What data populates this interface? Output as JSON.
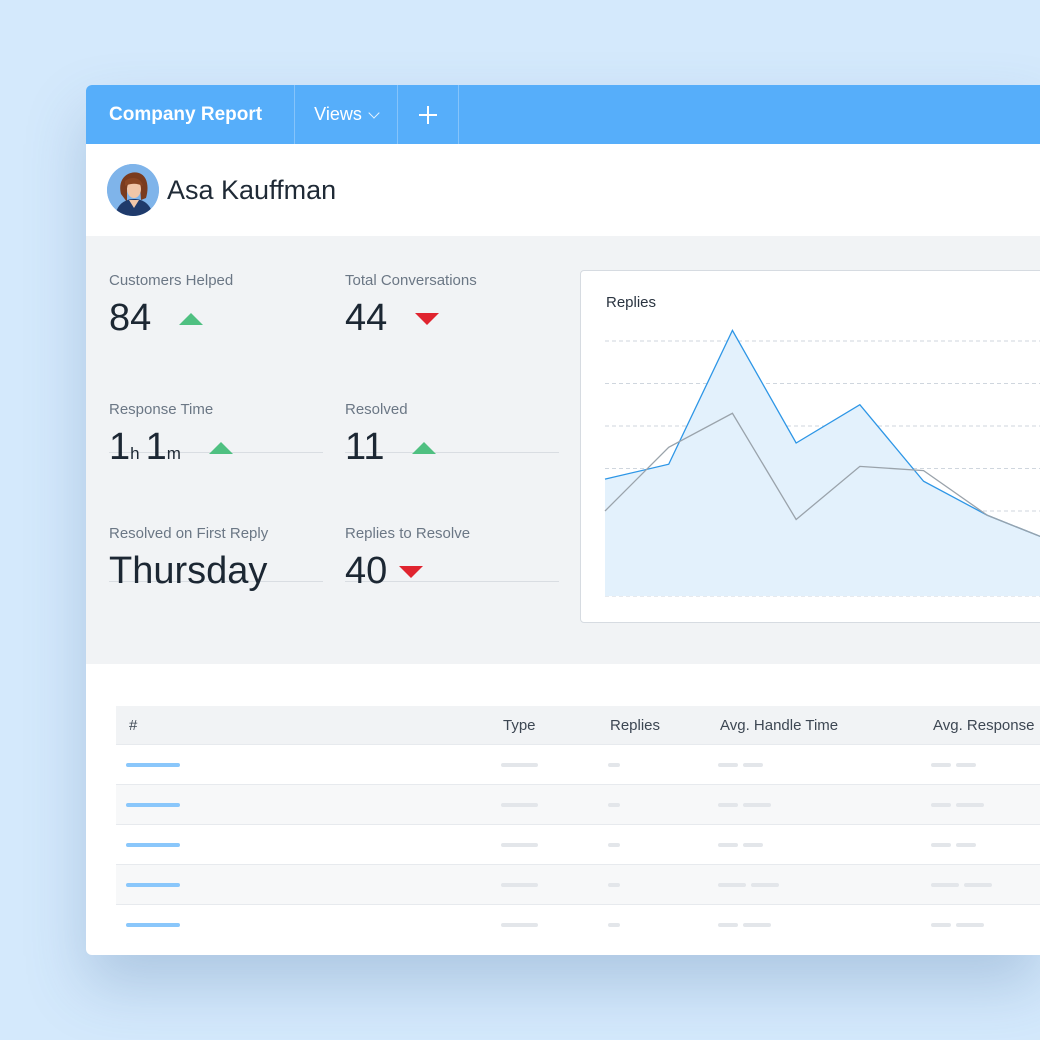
{
  "header": {
    "title": "Company Report",
    "views_label": "Views",
    "add_label": "+"
  },
  "user": {
    "name": "Asa Kauffman"
  },
  "metrics": [
    {
      "label": "Customers Helped",
      "value": "84",
      "trend": "up"
    },
    {
      "label": "Total Conversations",
      "value": "44",
      "trend": "down"
    },
    {
      "label": "Response Time",
      "hours": "1",
      "hours_unit": "h",
      "minutes": "1",
      "minutes_unit": "m",
      "trend": "up"
    },
    {
      "label": "Resolved",
      "value": "11",
      "trend": "up"
    },
    {
      "label": "Resolved on First Reply",
      "value": "Thursday"
    },
    {
      "label": "Replies to Resolve",
      "value": "40",
      "trend": "down"
    }
  ],
  "colors": {
    "accent": "#56aefa",
    "up": "#4fc081",
    "down": "#e0242f",
    "series_primary": "#2d96e6",
    "series_secondary": "#9aa3ab"
  },
  "chart_data": {
    "type": "line",
    "title": "Replies",
    "x": [
      0,
      1,
      2,
      3,
      4,
      5,
      6,
      7
    ],
    "ylim": [
      0,
      6
    ],
    "grid": true,
    "series": [
      {
        "values": [
          2.75,
          3.1,
          6.25,
          3.6,
          4.5,
          2.7,
          1.9,
          1.3
        ],
        "fill": true
      },
      {
        "values": [
          2.0,
          3.5,
          4.3,
          1.8,
          3.05,
          2.95,
          1.9,
          1.3
        ],
        "fill": false
      }
    ]
  },
  "table": {
    "columns": [
      "#",
      "Type",
      "Replies",
      "Avg. Handle Time",
      "Avg. Response"
    ],
    "rows": 5
  }
}
